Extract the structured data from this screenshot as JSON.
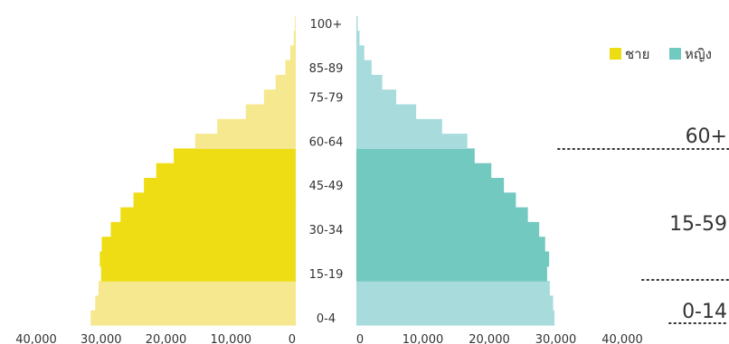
{
  "chart_data": {
    "type": "bar",
    "orientation": "horizontal-pyramid",
    "categories": [
      "0-4",
      "5-9",
      "10-14",
      "15-19",
      "20-24",
      "25-29",
      "30-34",
      "35-39",
      "40-44",
      "45-49",
      "50-54",
      "55-59",
      "60-64",
      "65-69",
      "70-74",
      "75-79",
      "80-84",
      "85-89",
      "90-94",
      "95-99",
      "100+"
    ],
    "category_labels_shown": [
      "0-4",
      "15-19",
      "30-34",
      "45-49",
      "60-64",
      "75-79",
      "85-89",
      "100+"
    ],
    "series": [
      {
        "name": "ชาย",
        "side": "left",
        "values": [
          31600,
          30900,
          30400,
          30000,
          30200,
          29900,
          28500,
          27000,
          25000,
          23400,
          21500,
          18800,
          15500,
          12100,
          7700,
          4900,
          3100,
          1600,
          850,
          300,
          120
        ]
      },
      {
        "name": "หญิง",
        "side": "right",
        "values": [
          29800,
          29600,
          29100,
          28700,
          29000,
          28400,
          27500,
          25800,
          24000,
          22200,
          20300,
          17800,
          16700,
          12900,
          9000,
          6000,
          3900,
          2300,
          1200,
          480,
          200
        ]
      }
    ],
    "xlim": [
      0,
      40000
    ],
    "x_ticks_left": [
      "40,000",
      "30,000",
      "20,000",
      "10,000",
      "0"
    ],
    "x_ticks_right": [
      "0",
      "10,000",
      "20,000",
      "30,000",
      "40,000"
    ],
    "legend_position": "top-right",
    "age_groups": [
      {
        "label": "60+",
        "from_index": 12,
        "to_index": 20
      },
      {
        "label": "15-59",
        "from_index": 3,
        "to_index": 11
      },
      {
        "label": "0-14",
        "from_index": 0,
        "to_index": 2
      }
    ],
    "colors": {
      "male_light": "#f5e88e",
      "male_dark": "#eedd14",
      "female_light": "#a8dcdc",
      "female_dark": "#72c9c0",
      "dots": "#333333"
    }
  }
}
